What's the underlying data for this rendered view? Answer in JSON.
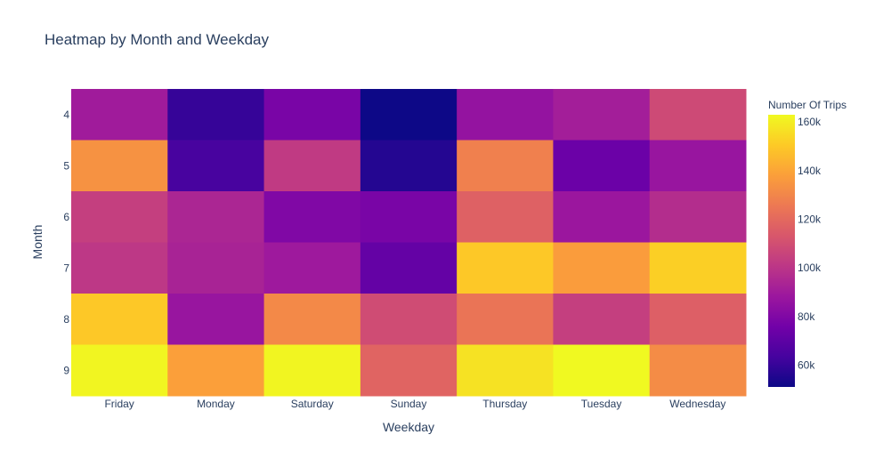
{
  "chart_data": {
    "type": "heatmap",
    "title": "Heatmap by Month and Weekday",
    "xlabel": "Weekday",
    "ylabel": "Month",
    "x": [
      "Friday",
      "Monday",
      "Saturday",
      "Sunday",
      "Thursday",
      "Tuesday",
      "Wednesday"
    ],
    "y": [
      "4",
      "5",
      "6",
      "7",
      "8",
      "9"
    ],
    "z": [
      [
        90000,
        60000,
        78000,
        51000,
        86000,
        91000,
        108000
      ],
      [
        134000,
        64000,
        102000,
        56000,
        128000,
        74000,
        87000
      ],
      [
        104000,
        94000,
        80000,
        78000,
        117000,
        88000,
        97000
      ],
      [
        101000,
        93000,
        89000,
        72000,
        150000,
        137000,
        152000
      ],
      [
        150000,
        87000,
        131000,
        109000,
        124000,
        104000,
        116000
      ],
      [
        162000,
        138000,
        162000,
        118000,
        157000,
        163000,
        132000
      ]
    ],
    "colorscale": [
      "#0d0887",
      "#46039f",
      "#7201a8",
      "#9c179e",
      "#bd3786",
      "#d8576b",
      "#ed7953",
      "#fb9f3a",
      "#fdca26",
      "#f0f921"
    ],
    "zrange": [
      51000,
      163000
    ],
    "colorbar": {
      "title": "Number Of Trips",
      "ticks": [
        60000,
        80000,
        100000,
        120000,
        140000,
        160000
      ],
      "tick_labels": [
        "60k",
        "80k",
        "100k",
        "120k",
        "140k",
        "160k"
      ]
    }
  }
}
